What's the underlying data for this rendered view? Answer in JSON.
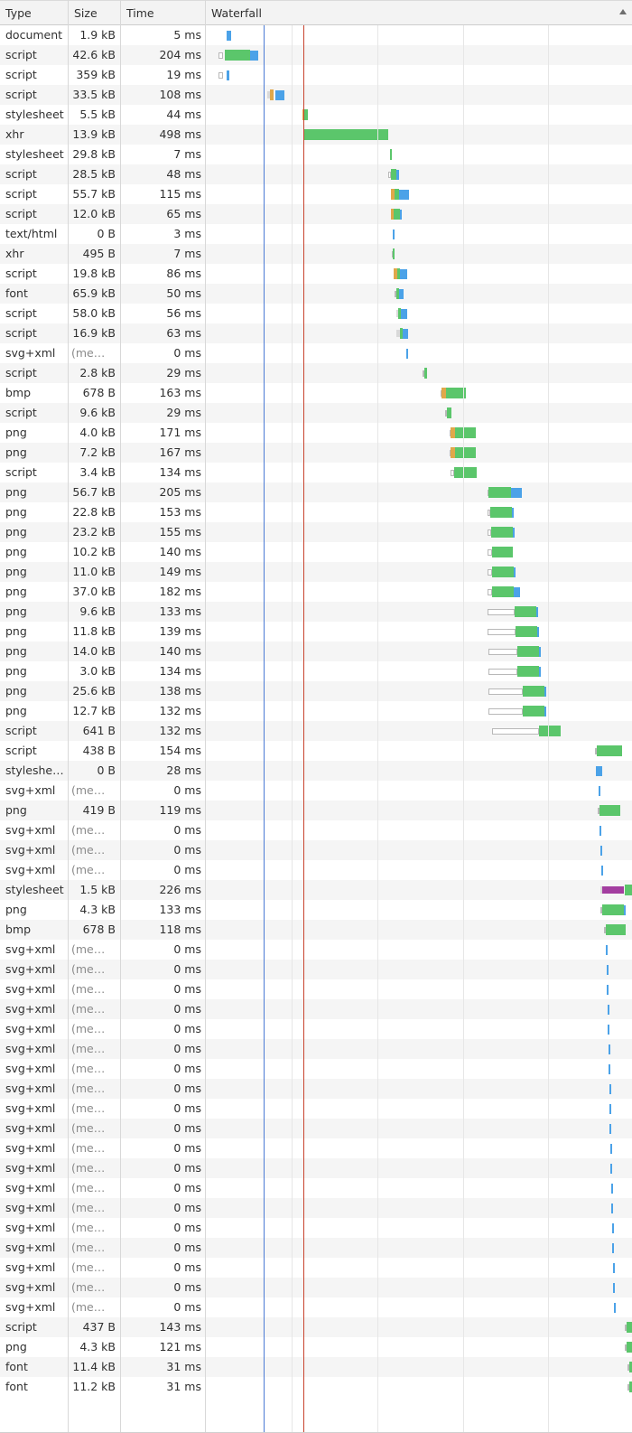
{
  "header": {
    "type": "Type",
    "size": "Size",
    "time": "Time",
    "waterfall": "Waterfall"
  },
  "colors": {
    "waiting": "#5bc66b",
    "receiving": "#4ba2e8",
    "queue_border": "#b8b8b8",
    "dns": "#e0a84a",
    "ssl": "#a33ea0",
    "dom_content_loaded": "#4b7bd5",
    "load": "#c8442f"
  },
  "rows": [
    {
      "type": "document",
      "size": "1.9 kB",
      "time": "5 ms",
      "wf": [
        [
          "recv",
          4.8,
          1.2
        ]
      ]
    },
    {
      "type": "script",
      "size": "42.6 kB",
      "time": "204 ms",
      "wf": [
        [
          "queue",
          2.9,
          1.1
        ],
        [
          "wait",
          4.5,
          5.8
        ],
        [
          "recv",
          10.3,
          2.0
        ]
      ]
    },
    {
      "type": "script",
      "size": "359 kB",
      "time": "19 ms",
      "wf": [
        [
          "queue",
          2.9,
          1.1
        ],
        [
          "recv",
          4.8,
          0.7
        ]
      ]
    },
    {
      "type": "script",
      "size": "33.5 kB",
      "time": "108 ms",
      "wf": [
        [
          "stall",
          14.5,
          0.6
        ],
        [
          "dns",
          15.1,
          0.7
        ],
        [
          "recv",
          16.4,
          2.0
        ]
      ]
    },
    {
      "type": "stylesheet",
      "size": "5.5 kB",
      "time": "44 ms",
      "wf": [
        [
          "dns",
          22.6,
          0.5
        ],
        [
          "wait",
          23.1,
          0.8
        ]
      ]
    },
    {
      "type": "xhr",
      "size": "13.9 kB",
      "time": "498 ms",
      "wf": [
        [
          "wait",
          22.9,
          20.0
        ]
      ]
    },
    {
      "type": "stylesheet",
      "size": "29.8 kB",
      "time": "7 ms",
      "wf": [
        [
          "wait",
          43.2,
          0.5
        ]
      ]
    },
    {
      "type": "script",
      "size": "28.5 kB",
      "time": "48 ms",
      "wf": [
        [
          "queue",
          42.9,
          0.5
        ],
        [
          "wait",
          43.4,
          1.3
        ],
        [
          "recv",
          44.7,
          0.6
        ]
      ]
    },
    {
      "type": "script",
      "size": "55.7 kB",
      "time": "115 ms",
      "wf": [
        [
          "dns",
          43.4,
          0.8
        ],
        [
          "wait",
          44.2,
          1.2
        ],
        [
          "recv",
          45.4,
          2.3
        ]
      ]
    },
    {
      "type": "script",
      "size": "12.0 kB",
      "time": "65 ms",
      "wf": [
        [
          "dns",
          43.4,
          0.7
        ],
        [
          "wait",
          44.1,
          1.4
        ],
        [
          "recv",
          45.5,
          0.3
        ]
      ]
    },
    {
      "type": "text/html",
      "size": "0 B",
      "time": "3 ms",
      "wf": [
        [
          "recv",
          43.8,
          0.4
        ]
      ]
    },
    {
      "type": "xhr",
      "size": "495 B",
      "time": "7 ms",
      "wf": [
        [
          "queue",
          43.6,
          0.3
        ],
        [
          "wait",
          43.9,
          0.4
        ]
      ]
    },
    {
      "type": "script",
      "size": "19.8 kB",
      "time": "86 ms",
      "wf": [
        [
          "dns",
          44.1,
          0.8
        ],
        [
          "wait",
          44.9,
          0.7
        ],
        [
          "recv",
          45.6,
          1.6
        ]
      ]
    },
    {
      "type": "font",
      "size": "65.9 kB",
      "time": "50 ms",
      "wf": [
        [
          "queue",
          44.2,
          0.4
        ],
        [
          "wait",
          44.6,
          0.8
        ],
        [
          "recv",
          45.4,
          1.0
        ]
      ]
    },
    {
      "type": "script",
      "size": "58.0 kB",
      "time": "56 ms",
      "wf": [
        [
          "stall",
          44.8,
          0.4
        ],
        [
          "wait",
          45.2,
          0.5
        ],
        [
          "recv",
          45.7,
          1.6
        ]
      ]
    },
    {
      "type": "script",
      "size": "16.9 kB",
      "time": "63 ms",
      "wf": [
        [
          "stall",
          44.8,
          0.8
        ],
        [
          "wait",
          45.6,
          0.5
        ],
        [
          "recv",
          46.1,
          1.4
        ]
      ]
    },
    {
      "type": "svg+xml",
      "size": "(mem…",
      "mem": true,
      "time": "0 ms",
      "wf": [
        [
          "recv",
          47.1,
          0.4
        ]
      ]
    },
    {
      "type": "script",
      "size": "2.8 kB",
      "time": "29 ms",
      "wf": [
        [
          "queue",
          50.8,
          0.4
        ],
        [
          "wait",
          51.2,
          0.7
        ]
      ]
    },
    {
      "type": "bmp",
      "size": "678 B",
      "time": "163 ms",
      "wf": [
        [
          "queue",
          55.0,
          0.4
        ],
        [
          "dns",
          55.4,
          0.9
        ],
        [
          "wait",
          56.3,
          4.7
        ]
      ]
    },
    {
      "type": "script",
      "size": "9.6 kB",
      "time": "29 ms",
      "wf": [
        [
          "queue",
          56.1,
          0.4
        ],
        [
          "wait",
          56.5,
          1.2
        ]
      ]
    },
    {
      "type": "png",
      "size": "4.0 kB",
      "time": "171 ms",
      "wf": [
        [
          "queue",
          57.1,
          0.4
        ],
        [
          "dns",
          57.5,
          0.9
        ],
        [
          "wait",
          58.4,
          5.0
        ]
      ]
    },
    {
      "type": "png",
      "size": "7.2 kB",
      "time": "167 ms",
      "wf": [
        [
          "queue",
          57.1,
          0.4
        ],
        [
          "dns",
          57.5,
          0.9
        ],
        [
          "wait",
          58.4,
          5.0
        ]
      ]
    },
    {
      "type": "script",
      "size": "3.4 kB",
      "time": "134 ms",
      "wf": [
        [
          "queue",
          57.5,
          0.8
        ],
        [
          "wait",
          58.3,
          5.2
        ]
      ]
    },
    {
      "type": "png",
      "size": "56.7 kB",
      "time": "205 ms",
      "wf": [
        [
          "queue",
          66.0,
          0.4
        ],
        [
          "wait",
          66.4,
          5.2
        ],
        [
          "recv",
          71.6,
          2.6
        ]
      ]
    },
    {
      "type": "png",
      "size": "22.8 kB",
      "time": "153 ms",
      "wf": [
        [
          "queue",
          66.0,
          0.8
        ],
        [
          "wait",
          66.8,
          5.0
        ],
        [
          "recv",
          71.8,
          0.4
        ]
      ]
    },
    {
      "type": "png",
      "size": "23.2 kB",
      "time": "155 ms",
      "wf": [
        [
          "queue",
          66.0,
          1.0
        ],
        [
          "wait",
          67.0,
          5.0
        ],
        [
          "recv",
          72.0,
          0.4
        ]
      ]
    },
    {
      "type": "png",
      "size": "10.2 kB",
      "time": "140 ms",
      "wf": [
        [
          "queue",
          66.2,
          1.0
        ],
        [
          "wait",
          67.2,
          4.8
        ]
      ]
    },
    {
      "type": "png",
      "size": "11.0 kB",
      "time": "149 ms",
      "wf": [
        [
          "queue",
          66.2,
          1.0
        ],
        [
          "wait",
          67.2,
          5.0
        ],
        [
          "recv",
          72.2,
          0.3
        ]
      ]
    },
    {
      "type": "png",
      "size": "37.0 kB",
      "time": "182 ms",
      "wf": [
        [
          "queue",
          66.2,
          1.0
        ],
        [
          "wait",
          67.2,
          5.0
        ],
        [
          "recv",
          72.2,
          1.6
        ]
      ]
    },
    {
      "type": "png",
      "size": "9.6 kB",
      "time": "133 ms",
      "wf": [
        [
          "queue",
          66.2,
          6.2
        ],
        [
          "wait",
          72.4,
          5.2
        ],
        [
          "recv",
          77.6,
          0.3
        ]
      ]
    },
    {
      "type": "png",
      "size": "11.8 kB",
      "time": "139 ms",
      "wf": [
        [
          "queue",
          66.2,
          6.4
        ],
        [
          "wait",
          72.6,
          5.2
        ],
        [
          "recv",
          77.8,
          0.3
        ]
      ]
    },
    {
      "type": "png",
      "size": "14.0 kB",
      "time": "140 ms",
      "wf": [
        [
          "queue",
          66.4,
          6.6
        ],
        [
          "wait",
          73.0,
          5.2
        ],
        [
          "recv",
          78.2,
          0.3
        ]
      ]
    },
    {
      "type": "png",
      "size": "3.0 kB",
      "time": "134 ms",
      "wf": [
        [
          "queue",
          66.4,
          6.6
        ],
        [
          "wait",
          73.0,
          5.2
        ],
        [
          "recv",
          78.2,
          0.3
        ]
      ]
    },
    {
      "type": "png",
      "size": "25.6 kB",
      "time": "138 ms",
      "wf": [
        [
          "queue",
          66.4,
          8.0
        ],
        [
          "wait",
          74.4,
          5.0
        ],
        [
          "recv",
          79.4,
          0.4
        ]
      ]
    },
    {
      "type": "png",
      "size": "12.7 kB",
      "time": "132 ms",
      "wf": [
        [
          "queue",
          66.4,
          8.0
        ],
        [
          "wait",
          74.4,
          5.0
        ],
        [
          "recv",
          79.4,
          0.3
        ]
      ]
    },
    {
      "type": "script",
      "size": "641 B",
      "time": "132 ms",
      "wf": [
        [
          "queue",
          67.2,
          11.0
        ],
        [
          "wait",
          78.2,
          5.0
        ]
      ]
    },
    {
      "type": "script",
      "size": "438 B",
      "time": "154 ms",
      "wf": [
        [
          "queue",
          91.3,
          0.5
        ],
        [
          "wait",
          91.8,
          5.8
        ]
      ]
    },
    {
      "type": "styleshe…",
      "size": "0 B",
      "time": "28 ms",
      "wf": [
        [
          "recv",
          91.5,
          1.6
        ]
      ]
    },
    {
      "type": "svg+xml",
      "size": "(mem…",
      "mem": true,
      "time": "0 ms",
      "wf": [
        [
          "recv",
          92.1,
          0.4
        ]
      ]
    },
    {
      "type": "png",
      "size": "419 B",
      "time": "119 ms",
      "wf": [
        [
          "queue",
          92.0,
          0.4
        ],
        [
          "wait",
          92.4,
          4.8
        ]
      ]
    },
    {
      "type": "svg+xml",
      "size": "(mem…",
      "mem": true,
      "time": "0 ms",
      "wf": [
        [
          "recv",
          92.3,
          0.4
        ]
      ]
    },
    {
      "type": "svg+xml",
      "size": "(mem…",
      "mem": true,
      "time": "0 ms",
      "wf": [
        [
          "recv",
          92.5,
          0.4
        ]
      ]
    },
    {
      "type": "svg+xml",
      "size": "(mem…",
      "mem": true,
      "time": "0 ms",
      "wf": [
        [
          "recv",
          92.7,
          0.4
        ]
      ]
    },
    {
      "type": "stylesheet",
      "size": "1.5 kB",
      "time": "226 ms",
      "wf": [
        [
          "stall",
          92.6,
          0.4
        ],
        [
          "ssl",
          93.0,
          5.2
        ],
        [
          "wait",
          98.2,
          3.8
        ],
        [
          "recv",
          102.0,
          0.3
        ]
      ]
    },
    {
      "type": "png",
      "size": "4.3 kB",
      "time": "133 ms",
      "wf": [
        [
          "queue",
          92.6,
          0.4
        ],
        [
          "wait",
          93.0,
          5.0
        ],
        [
          "recv",
          98.0,
          0.3
        ]
      ]
    },
    {
      "type": "bmp",
      "size": "678 B",
      "time": "118 ms",
      "wf": [
        [
          "queue",
          93.4,
          0.4
        ],
        [
          "wait",
          93.8,
          4.8
        ]
      ]
    },
    {
      "type": "svg+xml",
      "size": "(mem…",
      "mem": true,
      "time": "0 ms",
      "wf": [
        [
          "recv",
          93.9,
          0.4
        ]
      ]
    },
    {
      "type": "svg+xml",
      "size": "(mem…",
      "mem": true,
      "time": "0 ms",
      "wf": [
        [
          "recv",
          94.0,
          0.4
        ]
      ]
    },
    {
      "type": "svg+xml",
      "size": "(mem…",
      "mem": true,
      "time": "0 ms",
      "wf": [
        [
          "recv",
          94.1,
          0.4
        ]
      ]
    },
    {
      "type": "svg+xml",
      "size": "(mem…",
      "mem": true,
      "time": "0 ms",
      "wf": [
        [
          "recv",
          94.2,
          0.4
        ]
      ]
    },
    {
      "type": "svg+xml",
      "size": "(mem…",
      "mem": true,
      "time": "0 ms",
      "wf": [
        [
          "recv",
          94.3,
          0.4
        ]
      ]
    },
    {
      "type": "svg+xml",
      "size": "(mem…",
      "mem": true,
      "time": "0 ms",
      "wf": [
        [
          "recv",
          94.4,
          0.4
        ]
      ]
    },
    {
      "type": "svg+xml",
      "size": "(mem…",
      "mem": true,
      "time": "0 ms",
      "wf": [
        [
          "recv",
          94.5,
          0.4
        ]
      ]
    },
    {
      "type": "svg+xml",
      "size": "(mem…",
      "mem": true,
      "time": "0 ms",
      "wf": [
        [
          "recv",
          94.6,
          0.4
        ]
      ]
    },
    {
      "type": "svg+xml",
      "size": "(mem…",
      "mem": true,
      "time": "0 ms",
      "wf": [
        [
          "recv",
          94.7,
          0.4
        ]
      ]
    },
    {
      "type": "svg+xml",
      "size": "(mem…",
      "mem": true,
      "time": "0 ms",
      "wf": [
        [
          "recv",
          94.8,
          0.4
        ]
      ]
    },
    {
      "type": "svg+xml",
      "size": "(mem…",
      "mem": true,
      "time": "0 ms",
      "wf": [
        [
          "recv",
          94.9,
          0.4
        ]
      ]
    },
    {
      "type": "svg+xml",
      "size": "(mem…",
      "mem": true,
      "time": "0 ms",
      "wf": [
        [
          "recv",
          95.0,
          0.4
        ]
      ]
    },
    {
      "type": "svg+xml",
      "size": "(mem…",
      "mem": true,
      "time": "0 ms",
      "wf": [
        [
          "recv",
          95.1,
          0.4
        ]
      ]
    },
    {
      "type": "svg+xml",
      "size": "(mem…",
      "mem": true,
      "time": "0 ms",
      "wf": [
        [
          "recv",
          95.2,
          0.4
        ]
      ]
    },
    {
      "type": "svg+xml",
      "size": "(mem…",
      "mem": true,
      "time": "0 ms",
      "wf": [
        [
          "recv",
          95.3,
          0.4
        ]
      ]
    },
    {
      "type": "svg+xml",
      "size": "(mem…",
      "mem": true,
      "time": "0 ms",
      "wf": [
        [
          "recv",
          95.4,
          0.4
        ]
      ]
    },
    {
      "type": "svg+xml",
      "size": "(mem…",
      "mem": true,
      "time": "0 ms",
      "wf": [
        [
          "recv",
          95.5,
          0.4
        ]
      ]
    },
    {
      "type": "svg+xml",
      "size": "(mem…",
      "mem": true,
      "time": "0 ms",
      "wf": [
        [
          "recv",
          95.6,
          0.4
        ]
      ]
    },
    {
      "type": "svg+xml",
      "size": "(mem…",
      "mem": true,
      "time": "0 ms",
      "wf": [
        [
          "recv",
          95.7,
          0.4
        ]
      ]
    },
    {
      "type": "script",
      "size": "437 B",
      "time": "143 ms",
      "wf": [
        [
          "queue",
          98.4,
          0.4
        ],
        [
          "wait",
          98.8,
          5.6
        ]
      ]
    },
    {
      "type": "png",
      "size": "4.3 kB",
      "time": "121 ms",
      "wf": [
        [
          "queue",
          98.4,
          0.4
        ],
        [
          "wait",
          98.8,
          4.6
        ]
      ]
    },
    {
      "type": "font",
      "size": "11.4 kB",
      "time": "31 ms",
      "wf": [
        [
          "queue",
          99.0,
          0.3
        ],
        [
          "wait",
          99.3,
          1.0
        ]
      ]
    },
    {
      "type": "font",
      "size": "11.2 kB",
      "time": "31 ms",
      "wf": [
        [
          "queue",
          99.0,
          0.3
        ],
        [
          "wait",
          99.3,
          1.0
        ]
      ]
    }
  ],
  "waterfall_markers": [
    {
      "name": "DOMContentLoaded",
      "at": 13.6,
      "color": "#4b7bd5"
    },
    {
      "name": "load",
      "at": 22.8,
      "color": "#c8442f"
    }
  ],
  "waterfall_gridlines": [
    20.1,
    40.2,
    60.3,
    80.3,
    100.4
  ]
}
